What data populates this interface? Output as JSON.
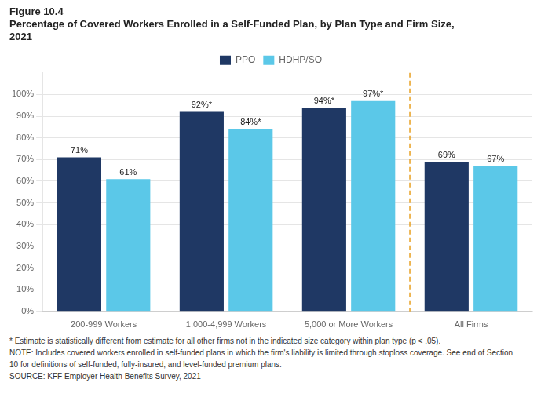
{
  "chart_data": {
    "type": "bar",
    "title": [
      "Figure 10.4",
      "Percentage of Covered Workers Enrolled in a Self-Funded Plan, by Plan Type and Firm Size,",
      "2021"
    ],
    "categories": [
      "200-999 Workers",
      "1,000-4,999 Workers",
      "5,000 or More Workers",
      "All Firms"
    ],
    "series": [
      {
        "name": "PPO",
        "color": "#1F3864",
        "values": [
          71,
          92,
          94,
          69
        ],
        "value_labels": [
          "71%",
          "92%*",
          "94%*",
          "69%"
        ]
      },
      {
        "name": "HDHP/SO",
        "color": "#5BC8E8",
        "values": [
          61,
          84,
          97,
          67
        ],
        "value_labels": [
          "61%",
          "84%*",
          "97%*",
          "67%"
        ]
      }
    ],
    "ylim": [
      0,
      110
    ],
    "yticks": [
      {
        "value": 0,
        "label": "0%"
      },
      {
        "value": 10,
        "label": "10%"
      },
      {
        "value": 20,
        "label": "20%"
      },
      {
        "value": 30,
        "label": "30%"
      },
      {
        "value": 40,
        "label": "40%"
      },
      {
        "value": 50,
        "label": "50%"
      },
      {
        "value": 60,
        "label": "60%"
      },
      {
        "value": 70,
        "label": "70%"
      },
      {
        "value": 80,
        "label": "80%"
      },
      {
        "value": 90,
        "label": "90%"
      },
      {
        "value": 100,
        "label": "100%"
      }
    ],
    "grid": true,
    "legend": "top",
    "data_labels": true,
    "annotations": [
      {
        "type": "line",
        "between": [
          "5,000 or More Workers",
          "All Firms"
        ],
        "color": "#E8A020",
        "line_style": "dashed"
      },
      {
        "text": "* Estimate is statistically different from estimate for all other firms not in the indicated size category within plan type (p < .05)."
      },
      {
        "text": "NOTE:  Includes covered workers enrolled in self-funded plans in which the firm's liability is limited through stoploss coverage. See end of Section"
      },
      {
        "text": "10 for definitions of self-funded, fully-insured, and level-funded premium plans."
      },
      {
        "text": "SOURCE:  KFF Employer Health Benefits Survey, 2021"
      }
    ]
  }
}
